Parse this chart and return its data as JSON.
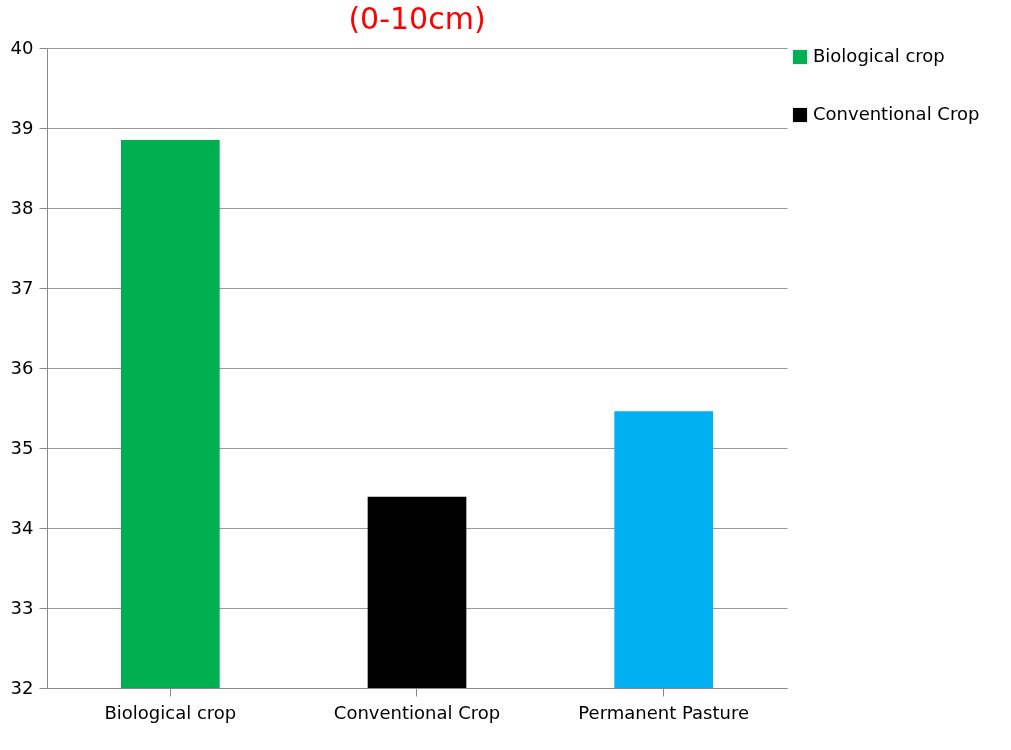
{
  "chart_data": {
    "type": "bar",
    "title": "(0-10cm)",
    "categories": [
      "Biological crop",
      "Conventional Crop",
      "Permanent Pasture"
    ],
    "series": [
      {
        "name": "Biological crop",
        "color": "#00b050",
        "values": [
          38.85,
          null,
          null
        ]
      },
      {
        "name": "Conventional Crop",
        "color": "#000000",
        "values": [
          null,
          34.39,
          null
        ]
      },
      {
        "color": "#00b0f0",
        "values": [
          null,
          null,
          35.46
        ]
      }
    ],
    "ylim": [
      32,
      40
    ],
    "yticks": [
      32,
      33,
      34,
      35,
      36,
      37,
      38,
      39,
      40
    ],
    "grid": "y",
    "legend": "right"
  }
}
